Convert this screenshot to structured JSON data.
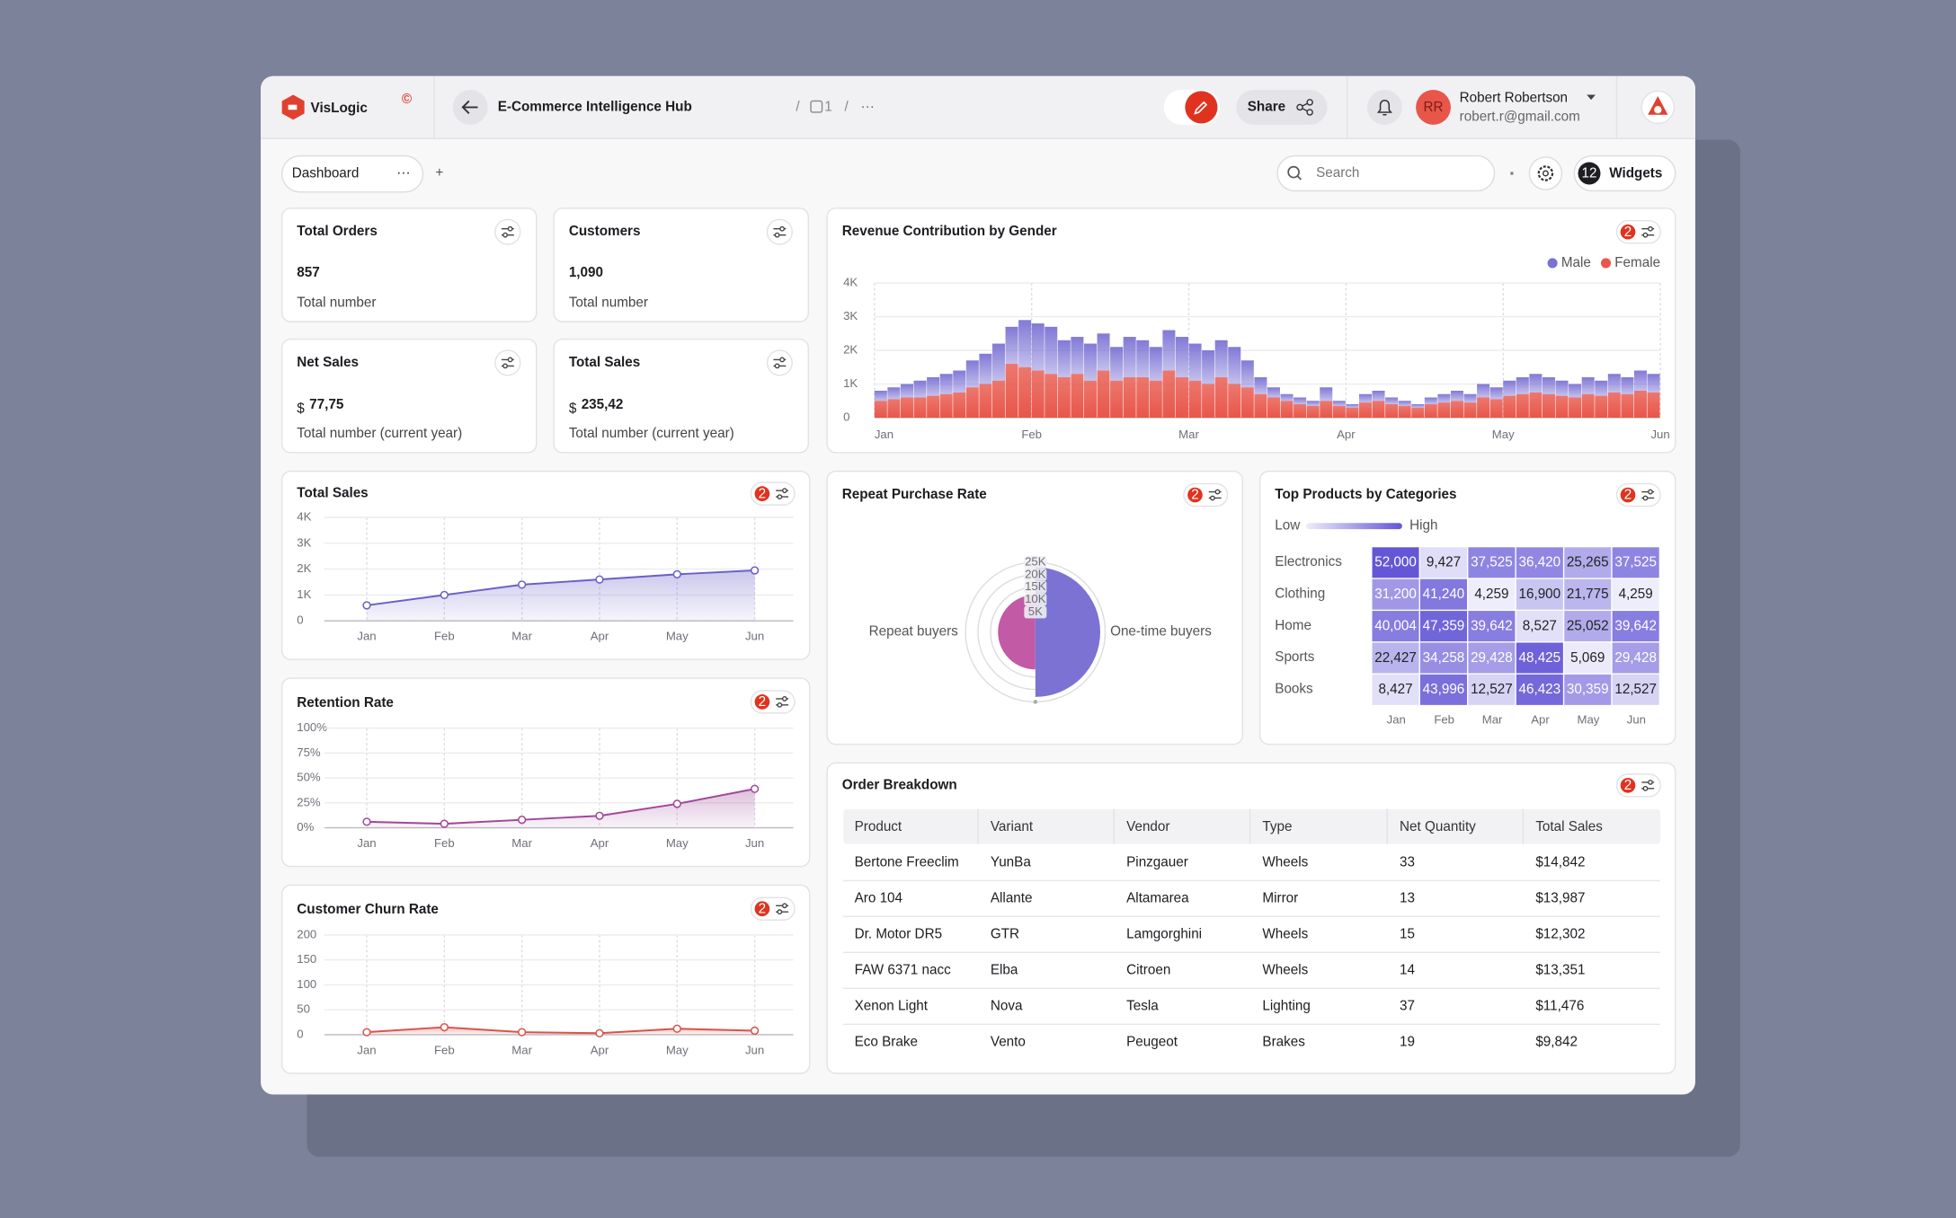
{
  "header": {
    "brand": "VisLogic",
    "brand_mark": "©",
    "title": "E-Commerce Intelligence Hub",
    "separator": "/",
    "page_count": "1",
    "more": "···",
    "share": "Share",
    "user": {
      "initials": "RR",
      "name": "Robert Robertson",
      "email": "robert.r@gmail.com"
    }
  },
  "toolbar": {
    "tab": "Dashboard",
    "tab_more": "···",
    "add": "+",
    "search_placeholder": "Search",
    "widget_count": "12",
    "widgets": "Widgets"
  },
  "kpis": [
    {
      "title": "Total Orders",
      "value": "857",
      "caption": "Total number"
    },
    {
      "title": "Customers",
      "value": "1,090",
      "caption": "Total number"
    },
    {
      "title": "Net Sales",
      "currency": "$",
      "value": "77,75",
      "caption": "Total number (current year)"
    },
    {
      "title": "Total Sales",
      "currency": "$",
      "value": "235,42",
      "caption": "Total number (current year)"
    }
  ],
  "chart_data": [
    {
      "type": "stacked_bar",
      "title": "Revenue Contribution by Gender",
      "badge": "2",
      "x_labels": [
        "Jan",
        "Feb",
        "Mar",
        "Apr",
        "May",
        "Jun"
      ],
      "series": [
        {
          "name": "Male",
          "color": "#7b72d4",
          "values": [
            300,
            350,
            400,
            500,
            550,
            600,
            650,
            800,
            900,
            1100,
            1100,
            1400,
            1400,
            1400,
            1100,
            1100,
            1100,
            1100,
            1000,
            1200,
            1100,
            1000,
            1200,
            1200,
            1100,
            1000,
            1100,
            1100,
            800,
            500,
            300,
            200,
            200,
            150,
            400,
            150,
            100,
            250,
            300,
            200,
            150,
            100,
            200,
            250,
            300,
            250,
            400,
            350,
            450,
            500,
            550,
            500,
            450,
            400,
            500,
            450,
            550,
            500,
            600,
            550
          ]
        },
        {
          "name": "Female",
          "color": "#e8564a",
          "values": [
            500,
            550,
            600,
            600,
            650,
            700,
            750,
            900,
            1000,
            1100,
            1600,
            1500,
            1400,
            1300,
            1200,
            1300,
            1100,
            1400,
            1100,
            1200,
            1200,
            1100,
            1400,
            1200,
            1100,
            1000,
            1200,
            1000,
            900,
            700,
            600,
            500,
            400,
            350,
            500,
            350,
            300,
            450,
            500,
            400,
            350,
            300,
            400,
            450,
            500,
            450,
            600,
            550,
            650,
            700,
            750,
            700,
            650,
            600,
            700,
            650,
            750,
            700,
            800,
            750
          ]
        }
      ],
      "ylim": [
        0,
        4000
      ],
      "yticks": [
        0,
        {
          "value": 1000,
          "label": "1K"
        },
        {
          "value": 2000,
          "label": "2K"
        },
        {
          "value": 3000,
          "label": "3K"
        },
        {
          "value": 4000,
          "label": "4K"
        }
      ],
      "grid": true,
      "legend": "top-right"
    },
    {
      "type": "area_line",
      "title": "Total Sales",
      "badge": "2",
      "categories": [
        "Jan",
        "Feb",
        "Mar",
        "Apr",
        "May",
        "Jun"
      ],
      "values": [
        600,
        1000,
        1400,
        1600,
        1800,
        1950
      ],
      "color": "#6a5fc8",
      "ylim": [
        0,
        4000
      ],
      "yticks": [
        0,
        {
          "value": 1000,
          "label": "1K"
        },
        {
          "value": 2000,
          "label": "2K"
        },
        {
          "value": 3000,
          "label": "3K"
        },
        {
          "value": 4000,
          "label": "4K"
        }
      ],
      "grid": true
    },
    {
      "type": "area_line",
      "title": "Retention Rate",
      "badge": "2",
      "categories": [
        "Jan",
        "Feb",
        "Mar",
        "Apr",
        "May",
        "Jun"
      ],
      "values": [
        6,
        4,
        8,
        12,
        24,
        39
      ],
      "color": "#a0479a",
      "ylim": [
        0,
        100
      ],
      "yticks": [
        {
          "value": 0,
          "label": "0%"
        },
        {
          "value": 25,
          "label": "25%"
        },
        {
          "value": 50,
          "label": "50%"
        },
        {
          "value": 75,
          "label": "75%"
        },
        {
          "value": 100,
          "label": "100%"
        }
      ],
      "grid": true
    },
    {
      "type": "area_line",
      "title": "Customer Churn Rate",
      "badge": "2",
      "categories": [
        "Jan",
        "Feb",
        "Mar",
        "Apr",
        "May",
        "Jun"
      ],
      "values": [
        5,
        15,
        5,
        3,
        12,
        8
      ],
      "color": "#d9534a",
      "ylim": [
        0,
        200
      ],
      "yticks": [
        0,
        50,
        100,
        150,
        200
      ],
      "grid": true
    },
    {
      "type": "radial_bar",
      "title": "Repeat Purchase Rate",
      "badge": "2",
      "categories": [
        "Repeat buyers",
        "One-time buyers"
      ],
      "values": [
        12000,
        23000
      ],
      "colors": [
        "#c25aa6",
        "#7b72d4"
      ],
      "ylim": [
        0,
        25000
      ],
      "yticks": [
        {
          "value": 5000,
          "label": "5K"
        },
        {
          "value": 10000,
          "label": "10K"
        },
        {
          "value": 15000,
          "label": "15K"
        },
        {
          "value": 20000,
          "label": "20K"
        },
        {
          "value": 25000,
          "label": "25K"
        }
      ]
    },
    {
      "type": "heatmap",
      "title": "Top Products by Categories",
      "badge": "2",
      "legend_low": "Low",
      "legend_high": "High",
      "rows": [
        "Electronics",
        "Clothing",
        "Home",
        "Sports",
        "Books"
      ],
      "columns": [
        "Jan",
        "Feb",
        "Mar",
        "Apr",
        "May",
        "Jun"
      ],
      "values": [
        [
          52000,
          9427,
          37525,
          36420,
          25265,
          37525
        ],
        [
          31200,
          41240,
          4259,
          16900,
          21775,
          4259
        ],
        [
          40004,
          47359,
          39642,
          8527,
          25052,
          39642
        ],
        [
          22427,
          34258,
          29428,
          48425,
          5069,
          29428
        ],
        [
          8427,
          43996,
          12527,
          46423,
          30359,
          12527
        ]
      ],
      "value_labels": [
        [
          "52,000",
          "9,427",
          "37,525",
          "36,420",
          "25,265",
          "37,525"
        ],
        [
          "31,200",
          "41,240",
          "4,259",
          "16,900",
          "21,775",
          "4,259"
        ],
        [
          "40,004",
          "47,359",
          "39,642",
          "8,527",
          "25,052",
          "39,642"
        ],
        [
          "22,427",
          "34,258",
          "29,428",
          "48,425",
          "5,069",
          "29,428"
        ],
        [
          "8,427",
          "43,996",
          "12,527",
          "46,423",
          "30,359",
          "12,527"
        ]
      ],
      "color_low": "#eeedfb",
      "color_high": "#6456d6"
    }
  ],
  "table": {
    "title": "Order Breakdown",
    "badge": "2",
    "columns": [
      "Product",
      "Variant",
      "Vendor",
      "Type",
      "Net Quantity",
      "Total Sales"
    ],
    "rows": [
      [
        "Bertone Freeclim",
        "YunBa",
        "Pinzgauer",
        "Wheels",
        "33",
        "$14,842"
      ],
      [
        "Aro 104",
        "Allante",
        "Altamarea",
        "Mirror",
        "13",
        "$13,987"
      ],
      [
        "Dr. Motor DR5",
        "GTR",
        "Lamgorghini",
        "Wheels",
        "15",
        "$12,302"
      ],
      [
        "FAW 6371 nacc",
        "Elba",
        "Citroen",
        "Wheels",
        "14",
        "$13,351"
      ],
      [
        "Xenon Light",
        "Nova",
        "Tesla",
        "Lighting",
        "37",
        "$11,476"
      ],
      [
        "Eco Brake",
        "Vento",
        "Peugeot",
        "Brakes",
        "19",
        "$9,842"
      ]
    ]
  }
}
